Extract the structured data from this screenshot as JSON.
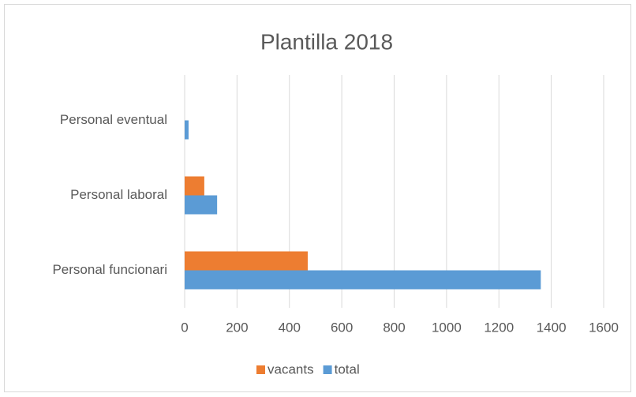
{
  "chart_data": {
    "type": "hbar",
    "title": "Plantilla 2018",
    "categories": [
      "Personal funcionari",
      "Personal laboral",
      "Personal eventual"
    ],
    "series": [
      {
        "name": "vacants",
        "color": "#ed7d31",
        "values": [
          470,
          75,
          0
        ]
      },
      {
        "name": "total",
        "color": "#5b9bd5",
        "values": [
          1360,
          124,
          15
        ]
      }
    ],
    "xlim": [
      0,
      1600
    ],
    "xticks": [
      0,
      200,
      400,
      600,
      800,
      1000,
      1200,
      1400,
      1600
    ],
    "grid": true,
    "legend": "bottom"
  }
}
